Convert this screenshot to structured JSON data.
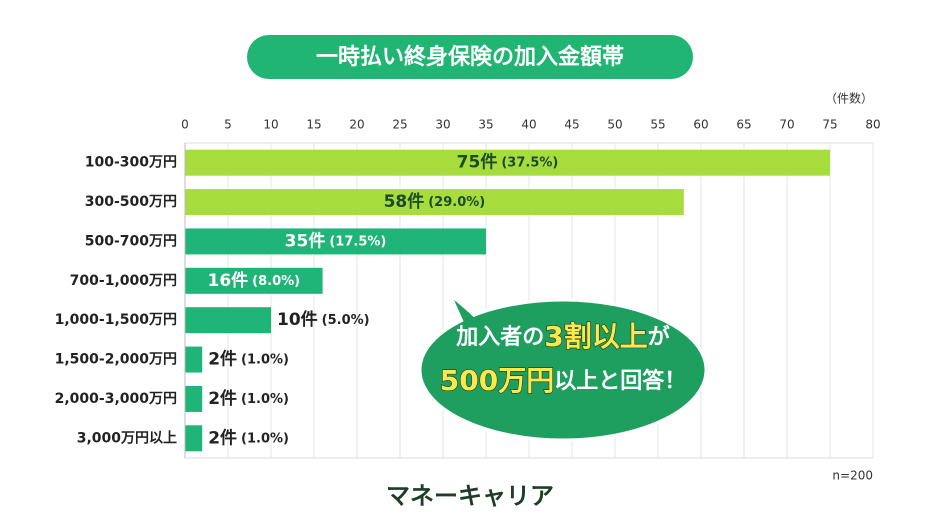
{
  "chart_data": {
    "type": "bar",
    "orientation": "horizontal",
    "title": "一時払い終身保険の加入金額帯",
    "unit_label": "（件数）",
    "note": "n=200",
    "brand": "マネーキャリア",
    "categories": [
      "100-300万円",
      "300-500万円",
      "500-700万円",
      "700-1,000万円",
      "1,000-1,500万円",
      "1,500-2,000万円",
      "2,000-3,000万円",
      "3,000万円以上"
    ],
    "values": [
      75,
      58,
      35,
      16,
      10,
      2,
      2,
      2
    ],
    "value_labels": [
      "75件",
      "58件",
      "35件",
      "16件",
      "10件",
      "2件",
      "2件",
      "2件"
    ],
    "share_labels": [
      "(37.5%)",
      "(29.0%)",
      "(17.5%)",
      "(8.0%)",
      "(5.0%)",
      "(1.0%)",
      "(1.0%)",
      "(1.0%)"
    ],
    "colors": [
      "#a6dc3c",
      "#a6dc3c",
      "#1fb478",
      "#1fb478",
      "#1fb478",
      "#1fb478",
      "#1fb478",
      "#1fb478"
    ],
    "label_colors": [
      "#1d4a2a",
      "#1d4a2a",
      "#ffffff",
      "#ffffff",
      "#222222",
      "#222222",
      "#222222",
      "#222222"
    ],
    "xlim": [
      0,
      80
    ],
    "xticks": [
      0,
      5,
      10,
      15,
      20,
      25,
      30,
      35,
      40,
      45,
      50,
      55,
      60,
      65,
      70,
      75,
      80
    ],
    "grid": true,
    "annotation": [
      [
        {
          "text": "加入者の",
          "emphasis": false
        },
        {
          "text": "3",
          "emphasis": true
        },
        {
          "text": "割以上",
          "emphasis": true
        },
        {
          "text": "が",
          "emphasis": false
        }
      ],
      [
        {
          "text": "500万円",
          "emphasis": true
        },
        {
          "text": "以上と回答！",
          "emphasis": false
        }
      ]
    ]
  }
}
